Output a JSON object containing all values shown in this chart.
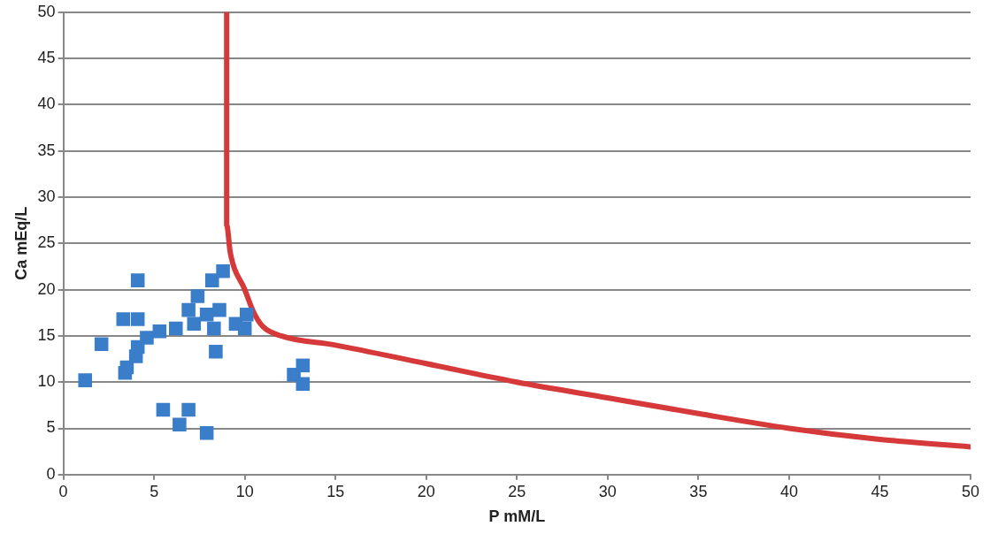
{
  "chart_data": {
    "type": "scatter",
    "xlabel": "P mM/L",
    "ylabel": "Ca mEq/L",
    "xlim": [
      0,
      50
    ],
    "ylim": [
      0,
      50
    ],
    "xticks": [
      0,
      5,
      10,
      15,
      20,
      25,
      30,
      35,
      40,
      45,
      50
    ],
    "yticks": [
      0,
      5,
      10,
      15,
      20,
      25,
      30,
      35,
      40,
      45,
      50
    ],
    "grid": "y",
    "legend": false,
    "marker": "square",
    "series": [
      {
        "color": "#3a7dc9",
        "x": [
          1.2,
          2.1,
          3.3,
          4.1,
          4.1,
          3.4,
          3.5,
          4.0,
          4.1,
          4.6,
          5.3,
          6.2,
          5.5,
          6.4,
          6.9,
          7.9,
          6.9,
          7.4,
          7.2,
          7.9,
          8.6,
          8.4,
          8.3,
          8.2,
          8.8,
          9.5,
          10.1,
          10.0,
          12.7,
          13.2,
          13.2
        ],
        "values": [
          10.2,
          14.1,
          16.8,
          16.8,
          21.0,
          11.0,
          11.6,
          12.8,
          13.8,
          14.8,
          15.5,
          15.8,
          7.0,
          5.4,
          7.0,
          4.5,
          17.8,
          19.3,
          16.3,
          17.3,
          17.8,
          13.3,
          15.8,
          21.0,
          22.0,
          16.3,
          17.3,
          15.8,
          10.8,
          11.8,
          9.8
        ]
      },
      {
        "type": "line",
        "color": "#d6393a",
        "marker": "none",
        "x": [
          9,
          9,
          9.2,
          10,
          10.5,
          11,
          12,
          15,
          20,
          25,
          30,
          35,
          40,
          45,
          50
        ],
        "values": [
          50,
          27,
          24,
          20,
          17.5,
          16,
          15,
          14,
          12,
          10,
          8.3,
          6.6,
          5,
          3.8,
          3
        ]
      }
    ]
  }
}
